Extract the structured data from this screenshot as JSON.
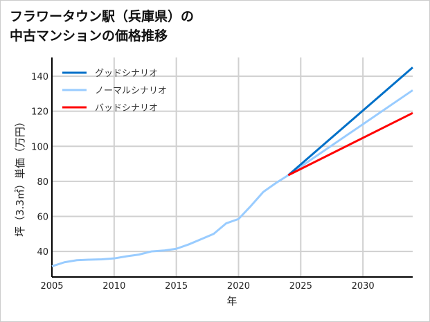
{
  "chart_data": {
    "type": "line",
    "title_lines": [
      "フラワータウン駅（兵庫県）の",
      "中古マンションの価格推移"
    ],
    "xlabel": "年",
    "ylabel": "坪（3.3㎡）単価（万円）",
    "xlim": [
      2005,
      2034
    ],
    "ylim": [
      25.4,
      150.7
    ],
    "xticks": [
      2005,
      2010,
      2015,
      2020,
      2025,
      2030
    ],
    "yticks": [
      40,
      60,
      80,
      100,
      120,
      140
    ],
    "grid": true,
    "legend_position": "top-left",
    "series": [
      {
        "name": "グッドシナリオ",
        "color": "#0070c8",
        "x": [
          2024,
          2034
        ],
        "y": [
          83.5,
          145
        ]
      },
      {
        "name": "ノーマルシナリオ",
        "color": "#99ccff",
        "x": [
          2005,
          2006,
          2007,
          2008,
          2009,
          2010,
          2011,
          2012,
          2013,
          2014,
          2015,
          2016,
          2017,
          2018,
          2019,
          2020,
          2021,
          2022,
          2023,
          2024,
          2034
        ],
        "y": [
          31.5,
          33.8,
          35,
          35.3,
          35.5,
          36,
          37.2,
          38.2,
          40,
          40.5,
          41.5,
          44,
          47,
          50,
          56,
          58.5,
          66,
          74,
          79,
          83.5,
          132
        ]
      },
      {
        "name": "バッドシナリオ",
        "color": "#ff0000",
        "x": [
          2024,
          2034
        ],
        "y": [
          83.5,
          119
        ]
      }
    ]
  }
}
